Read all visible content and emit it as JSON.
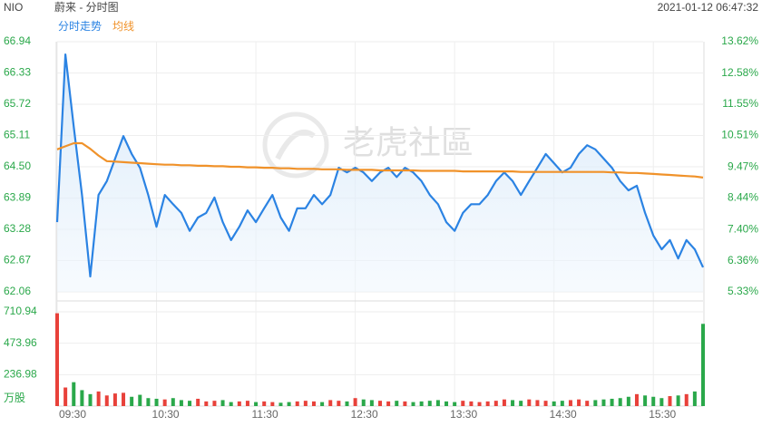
{
  "header": {
    "symbol": "NIO",
    "title": "蔚来 - 分时图",
    "timestamp": "2021-01-12 06:47:32"
  },
  "watermark": "老虎社區",
  "chart_data": {
    "type": "line",
    "x": [
      "09:30",
      "09:35",
      "09:40",
      "09:45",
      "09:50",
      "09:55",
      "10:00",
      "10:05",
      "10:10",
      "10:15",
      "10:20",
      "10:25",
      "10:30",
      "10:35",
      "10:40",
      "10:45",
      "10:50",
      "10:55",
      "11:00",
      "11:05",
      "11:10",
      "11:15",
      "11:20",
      "11:25",
      "11:30",
      "11:35",
      "11:40",
      "11:45",
      "11:50",
      "11:55",
      "12:00",
      "12:05",
      "12:10",
      "12:15",
      "12:20",
      "12:25",
      "12:30",
      "12:35",
      "12:40",
      "12:45",
      "12:50",
      "12:55",
      "13:00",
      "13:05",
      "13:10",
      "13:15",
      "13:20",
      "13:25",
      "13:30",
      "13:35",
      "13:40",
      "13:45",
      "13:50",
      "13:55",
      "14:00",
      "14:05",
      "14:10",
      "14:15",
      "14:20",
      "14:25",
      "14:30",
      "14:35",
      "14:40",
      "14:45",
      "14:50",
      "14:55",
      "15:00",
      "15:05",
      "15:10",
      "15:15",
      "15:20",
      "15:25",
      "15:30",
      "15:35",
      "15:40",
      "15:45",
      "15:50",
      "15:55",
      "16:00"
    ],
    "series": [
      {
        "name": "分时走势",
        "color": "#2b83e3",
        "values": [
          63.42,
          66.69,
          65.28,
          63.95,
          62.36,
          63.95,
          64.22,
          64.66,
          65.1,
          64.75,
          64.48,
          63.95,
          63.33,
          63.95,
          63.77,
          63.6,
          63.25,
          63.51,
          63.6,
          63.9,
          63.42,
          63.07,
          63.33,
          63.65,
          63.42,
          63.69,
          63.95,
          63.51,
          63.25,
          63.69,
          63.69,
          63.95,
          63.77,
          63.95,
          64.48,
          64.39,
          64.48,
          64.39,
          64.22,
          64.39,
          64.48,
          64.3,
          64.48,
          64.39,
          64.22,
          63.95,
          63.77,
          63.42,
          63.25,
          63.6,
          63.77,
          63.77,
          63.95,
          64.22,
          64.39,
          64.22,
          63.95,
          64.22,
          64.48,
          64.75,
          64.57,
          64.39,
          64.48,
          64.75,
          64.92,
          64.84,
          64.66,
          64.48,
          64.22,
          64.04,
          64.13,
          63.6,
          63.16,
          62.89,
          63.07,
          62.71,
          63.07,
          62.89,
          62.54
        ]
      },
      {
        "name": "均线",
        "color": "#f0922a",
        "values": [
          64.84,
          64.9,
          64.96,
          64.96,
          64.85,
          64.72,
          64.61,
          64.6,
          64.59,
          64.58,
          64.57,
          64.56,
          64.55,
          64.54,
          64.54,
          64.53,
          64.53,
          64.52,
          64.52,
          64.51,
          64.51,
          64.5,
          64.5,
          64.49,
          64.49,
          64.48,
          64.48,
          64.47,
          64.47,
          64.46,
          64.46,
          64.46,
          64.45,
          64.45,
          64.45,
          64.44,
          64.44,
          64.44,
          64.44,
          64.43,
          64.43,
          64.43,
          64.43,
          64.43,
          64.42,
          64.42,
          64.42,
          64.42,
          64.42,
          64.41,
          64.41,
          64.41,
          64.41,
          64.41,
          64.41,
          64.41,
          64.4,
          64.4,
          64.4,
          64.4,
          64.4,
          64.4,
          64.4,
          64.4,
          64.4,
          64.4,
          64.4,
          64.39,
          64.39,
          64.38,
          64.38,
          64.37,
          64.36,
          64.35,
          64.34,
          64.33,
          64.32,
          64.31,
          64.29
        ]
      }
    ],
    "ylim": [
      62.06,
      66.94
    ],
    "yticks": [
      62.06,
      62.67,
      63.28,
      63.89,
      {
        "value": 64.5,
        "label": "64.50"
      },
      65.11,
      65.72,
      66.33,
      66.94
    ],
    "y2lim": [
      5.33,
      13.62
    ],
    "y2ticks": [
      {
        "value": 5.33,
        "label": "5.33%"
      },
      {
        "value": 6.36,
        "label": "6.36%"
      },
      {
        "value": 7.4,
        "label": "7.40%"
      },
      {
        "value": 8.44,
        "label": "8.44%"
      },
      {
        "value": 9.47,
        "label": "9.47%"
      },
      {
        "value": 10.51,
        "label": "10.51%"
      },
      {
        "value": 11.55,
        "label": "11.55%"
      },
      {
        "value": 12.58,
        "label": "12.58%"
      },
      {
        "value": 13.62,
        "label": "13.62%"
      }
    ],
    "xticks": [
      "09:30",
      "10:30",
      "11:30",
      "12:30",
      "13:30",
      "14:30",
      "15:30"
    ],
    "axis_color": "#2aa84a",
    "area_fill": true
  },
  "volume_chart": {
    "type": "bar",
    "unit_label": "万股",
    "values": [
      700,
      140,
      180,
      120,
      90,
      110,
      80,
      95,
      100,
      70,
      85,
      60,
      55,
      50,
      60,
      45,
      40,
      55,
      35,
      40,
      45,
      30,
      35,
      40,
      30,
      35,
      30,
      25,
      30,
      35,
      40,
      35,
      30,
      45,
      40,
      35,
      60,
      50,
      45,
      40,
      35,
      40,
      35,
      30,
      35,
      40,
      45,
      35,
      30,
      40,
      35,
      30,
      35,
      40,
      50,
      45,
      40,
      50,
      45,
      40,
      35,
      40,
      45,
      50,
      40,
      45,
      50,
      55,
      60,
      70,
      90,
      80,
      70,
      60,
      75,
      80,
      90,
      110,
      620
    ],
    "ylim": [
      0,
      710.94
    ],
    "yticks": [
      236.98,
      473.96,
      710.94
    ],
    "up_color": "#e8413a",
    "down_color": "#2aa84a"
  }
}
